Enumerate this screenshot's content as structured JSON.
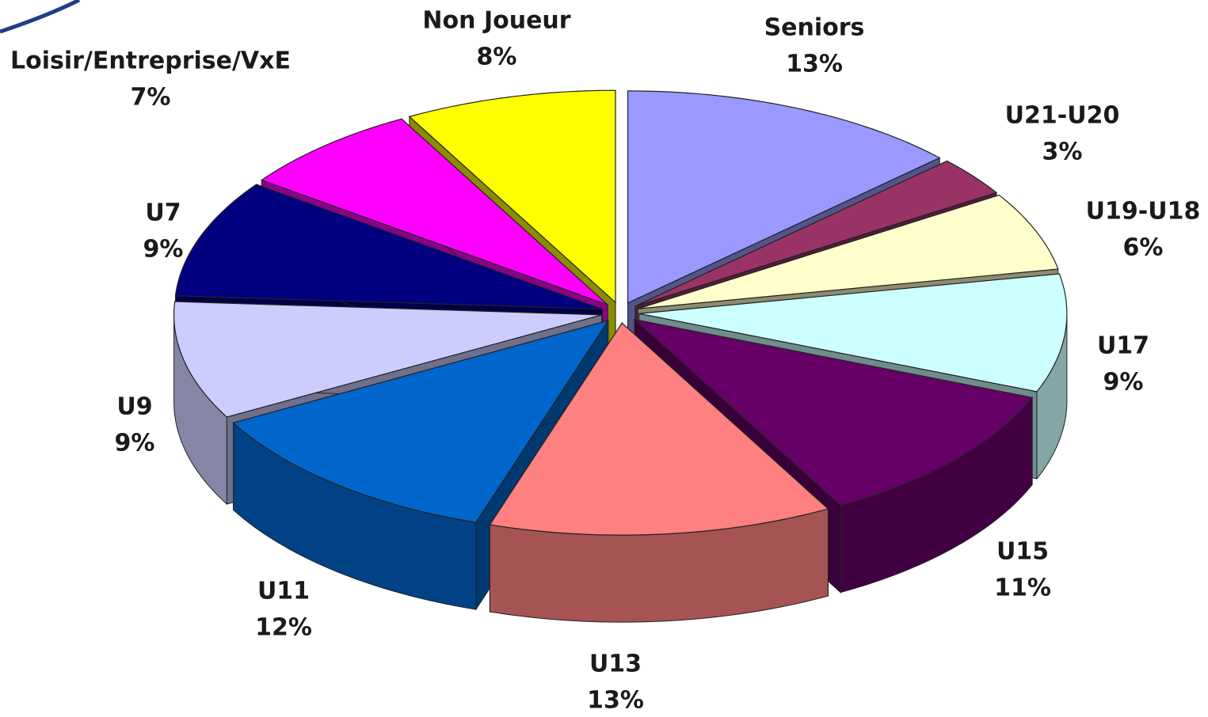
{
  "chart_data": {
    "type": "pie",
    "categories": [
      "Seniors",
      "U21-U20",
      "U19-U18",
      "U17",
      "U15",
      "U13",
      "U11",
      "U9",
      "U7",
      "Loisir/Entreprise/VxE",
      "Non Joueur"
    ],
    "values": [
      13,
      3,
      6,
      9,
      11,
      13,
      12,
      9,
      9,
      7,
      8
    ],
    "value_labels": [
      "13%",
      "3%",
      "6%",
      "9%",
      "11%",
      "13%",
      "12%",
      "9%",
      "9%",
      "7%",
      "8%"
    ],
    "colors": [
      "#9999ff",
      "#993366",
      "#ffffcc",
      "#ccffff",
      "#660066",
      "#ff8080",
      "#0066cc",
      "#ccccff",
      "#000080",
      "#ff00ff",
      "#ffff00"
    ]
  }
}
